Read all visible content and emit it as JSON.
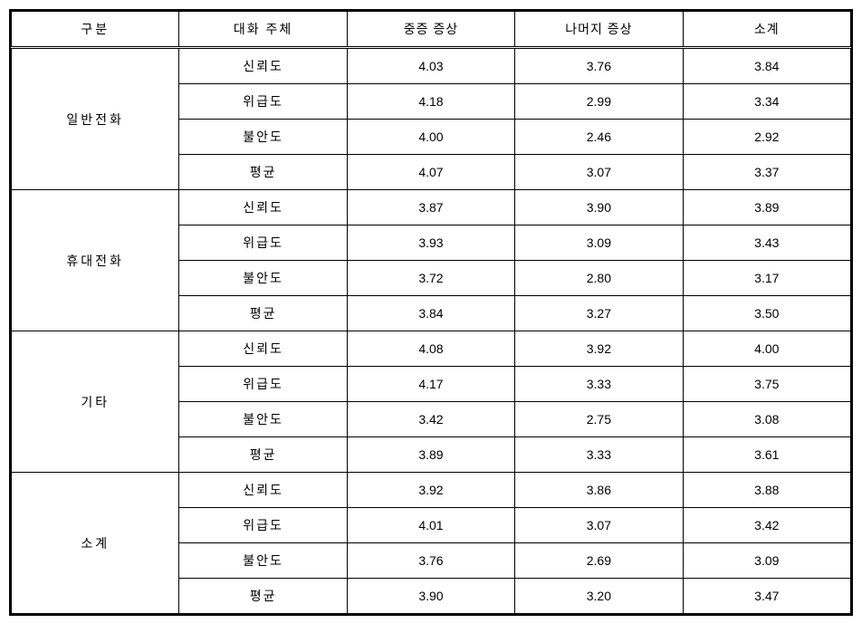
{
  "table": {
    "type": "table",
    "columns": [
      "구분",
      "대화 주체",
      "중증 증상",
      "나머지 증상",
      "소계"
    ],
    "groups": [
      {
        "category": "일반전화",
        "rows": [
          {
            "subject": "신뢰도",
            "severe": "4.03",
            "rest": "3.76",
            "subtotal": "3.84"
          },
          {
            "subject": "위급도",
            "severe": "4.18",
            "rest": "2.99",
            "subtotal": "3.34"
          },
          {
            "subject": "불안도",
            "severe": "4.00",
            "rest": "2.46",
            "subtotal": "2.92"
          },
          {
            "subject": "평균",
            "severe": "4.07",
            "rest": "3.07",
            "subtotal": "3.37"
          }
        ]
      },
      {
        "category": "휴대전화",
        "rows": [
          {
            "subject": "신뢰도",
            "severe": "3.87",
            "rest": "3.90",
            "subtotal": "3.89"
          },
          {
            "subject": "위급도",
            "severe": "3.93",
            "rest": "3.09",
            "subtotal": "3.43"
          },
          {
            "subject": "불안도",
            "severe": "3.72",
            "rest": "2.80",
            "subtotal": "3.17"
          },
          {
            "subject": "평균",
            "severe": "3.84",
            "rest": "3.27",
            "subtotal": "3.50"
          }
        ]
      },
      {
        "category": "기타",
        "rows": [
          {
            "subject": "신뢰도",
            "severe": "4.08",
            "rest": "3.92",
            "subtotal": "4.00"
          },
          {
            "subject": "위급도",
            "severe": "4.17",
            "rest": "3.33",
            "subtotal": "3.75"
          },
          {
            "subject": "불안도",
            "severe": "3.42",
            "rest": "2.75",
            "subtotal": "3.08"
          },
          {
            "subject": "평균",
            "severe": "3.89",
            "rest": "3.33",
            "subtotal": "3.61"
          }
        ]
      },
      {
        "category": "소계",
        "rows": [
          {
            "subject": "신뢰도",
            "severe": "3.92",
            "rest": "3.86",
            "subtotal": "3.88"
          },
          {
            "subject": "위급도",
            "severe": "4.01",
            "rest": "3.07",
            "subtotal": "3.42"
          },
          {
            "subject": "불안도",
            "severe": "3.76",
            "rest": "2.69",
            "subtotal": "3.09"
          },
          {
            "subject": "평균",
            "severe": "3.90",
            "rest": "3.20",
            "subtotal": "3.47"
          }
        ]
      }
    ],
    "background_color": "#ffffff",
    "border_color": "#000000",
    "font_size": 14
  }
}
